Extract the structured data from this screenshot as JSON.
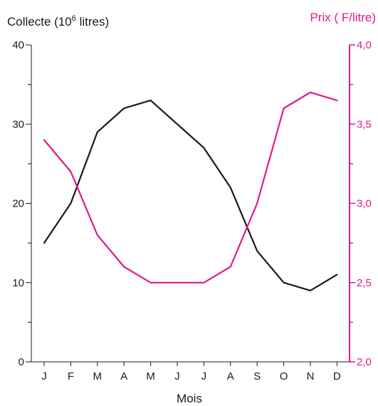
{
  "chart_data": {
    "type": "line",
    "xlabel": "Mois",
    "categories": [
      "J",
      "F",
      "M",
      "A",
      "M",
      "J",
      "J",
      "A",
      "S",
      "O",
      "N",
      "D"
    ],
    "left_axis": {
      "title_main": "Collecte (10",
      "title_sup": "6",
      "title_tail": " litres)",
      "ylim": [
        0,
        40
      ],
      "tick_labels": [
        "0",
        "10",
        "20",
        "30",
        "40"
      ],
      "color": "#1a1a1a"
    },
    "right_axis": {
      "title": "Prix ( F/litre)",
      "ylim": [
        2.0,
        4.0
      ],
      "tick_labels": [
        "2,0",
        "2,5",
        "3,0",
        "3,5",
        "4,0"
      ],
      "color": "#e0198c"
    },
    "series": [
      {
        "axis": "left",
        "color": "#1a1a1a",
        "values": [
          15,
          20,
          29,
          32,
          33,
          30,
          27,
          22,
          14,
          10,
          9,
          11
        ]
      },
      {
        "axis": "right",
        "color": "#e0198c",
        "values": [
          3.4,
          3.2,
          2.8,
          2.6,
          2.5,
          2.5,
          2.5,
          2.6,
          3.0,
          3.6,
          3.7,
          3.65
        ]
      }
    ]
  }
}
